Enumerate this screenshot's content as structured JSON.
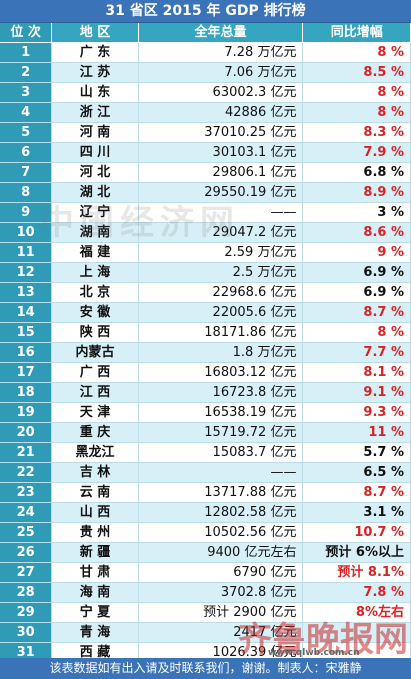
{
  "title": "31 省区 2015 年 GDP 排行榜",
  "header": {
    "rank": "位 次",
    "region": "地 区",
    "total": "全年总量",
    "growth": "同比增幅"
  },
  "rows": [
    {
      "rank": "1",
      "region": "广  东",
      "total": "7.28 万亿元",
      "growth": "8 %",
      "color": "red"
    },
    {
      "rank": "2",
      "region": "江  苏",
      "total": "7.06 万亿元",
      "growth": "8.5 %",
      "color": "red"
    },
    {
      "rank": "3",
      "region": "山  东",
      "total": "63002.3 亿元",
      "growth": "8 %",
      "color": "red"
    },
    {
      "rank": "4",
      "region": "浙  江",
      "total": "42886 亿元",
      "growth": "8 %",
      "color": "red"
    },
    {
      "rank": "5",
      "region": "河  南",
      "total": "37010.25 亿元",
      "growth": "8.3 %",
      "color": "red"
    },
    {
      "rank": "6",
      "region": "四  川",
      "total": "30103.1 亿元",
      "growth": "7.9 %",
      "color": "red"
    },
    {
      "rank": "7",
      "region": "河  北",
      "total": "29806.1 亿元",
      "growth": "6.8 %",
      "color": "black"
    },
    {
      "rank": "8",
      "region": "湖  北",
      "total": "29550.19 亿元",
      "growth": "8.9 %",
      "color": "red"
    },
    {
      "rank": "9",
      "region": "辽  宁",
      "total": "——",
      "growth": "3 %",
      "color": "black"
    },
    {
      "rank": "10",
      "region": "湖  南",
      "total": "29047.2 亿元",
      "growth": "8.6 %",
      "color": "red"
    },
    {
      "rank": "11",
      "region": "福  建",
      "total": "2.59 万亿元",
      "growth": "9 %",
      "color": "red"
    },
    {
      "rank": "12",
      "region": "上  海",
      "total": "2.5 万亿元",
      "growth": "6.9 %",
      "color": "black"
    },
    {
      "rank": "13",
      "region": "北  京",
      "total": "22968.6 亿元",
      "growth": "6.9 %",
      "color": "black"
    },
    {
      "rank": "14",
      "region": "安  徽",
      "total": "22005.6 亿元",
      "growth": "8.7 %",
      "color": "red"
    },
    {
      "rank": "15",
      "region": "陕  西",
      "total": "18171.86 亿元",
      "growth": "8 %",
      "color": "red"
    },
    {
      "rank": "16",
      "region": "内蒙古",
      "total": "1.8 万亿元",
      "growth": "7.7 %",
      "color": "red"
    },
    {
      "rank": "17",
      "region": "广  西",
      "total": "16803.12 亿元",
      "growth": "8.1 %",
      "color": "red"
    },
    {
      "rank": "18",
      "region": "江  西",
      "total": "16723.8 亿元",
      "growth": "9.1 %",
      "color": "red"
    },
    {
      "rank": "19",
      "region": "天  津",
      "total": "16538.19 亿元",
      "growth": "9.3 %",
      "color": "red"
    },
    {
      "rank": "20",
      "region": "重  庆",
      "total": "15719.72 亿元",
      "growth": "11 %",
      "color": "red"
    },
    {
      "rank": "21",
      "region": "黑龙江",
      "total": "15083.7 亿元",
      "growth": "5.7 %",
      "color": "black"
    },
    {
      "rank": "22",
      "region": "吉  林",
      "total": "——",
      "growth": "6.5 %",
      "color": "black"
    },
    {
      "rank": "23",
      "region": "云  南",
      "total": "13717.88 亿元",
      "growth": "8.7 %",
      "color": "red"
    },
    {
      "rank": "24",
      "region": "山  西",
      "total": "12802.58 亿元",
      "growth": "3.1 %",
      "color": "black"
    },
    {
      "rank": "25",
      "region": "贵  州",
      "total": "10502.56 亿元",
      "growth": "10.7 %",
      "color": "red"
    },
    {
      "rank": "26",
      "region": "新  疆",
      "total": "9400 亿元左右",
      "growth": "预计 6%以上",
      "color": "black"
    },
    {
      "rank": "27",
      "region": "甘  肃",
      "total": "6790 亿元",
      "growth": "预计 8.1%",
      "color": "red"
    },
    {
      "rank": "28",
      "region": "海  南",
      "total": "3702.8 亿元",
      "growth": "7.8 %",
      "color": "red"
    },
    {
      "rank": "29",
      "region": "宁  夏",
      "total": "预计 2900 亿元",
      "growth": "8%左右",
      "color": "red"
    },
    {
      "rank": "30",
      "region": "青  海",
      "total": "2417 亿元",
      "growth": "",
      "color": "red"
    },
    {
      "rank": "31",
      "region": "西  藏",
      "total": "1026.39 亿元",
      "growth": "",
      "color": "red"
    }
  ],
  "footer": "该表数据如有出入请及时联系我们，谢谢。制表人：宋雅静",
  "watermarks": {
    "center": "中国经济网",
    "logo": "齐鲁晚报网",
    "url": "www.qlwb.com.cn"
  },
  "colors": {
    "title_bg": "#3a73b7",
    "header_bg": "#36a6c0",
    "rank_bg": "#2f9bb7",
    "stripe": "#d7f0f7",
    "red_text": "#e02020"
  }
}
